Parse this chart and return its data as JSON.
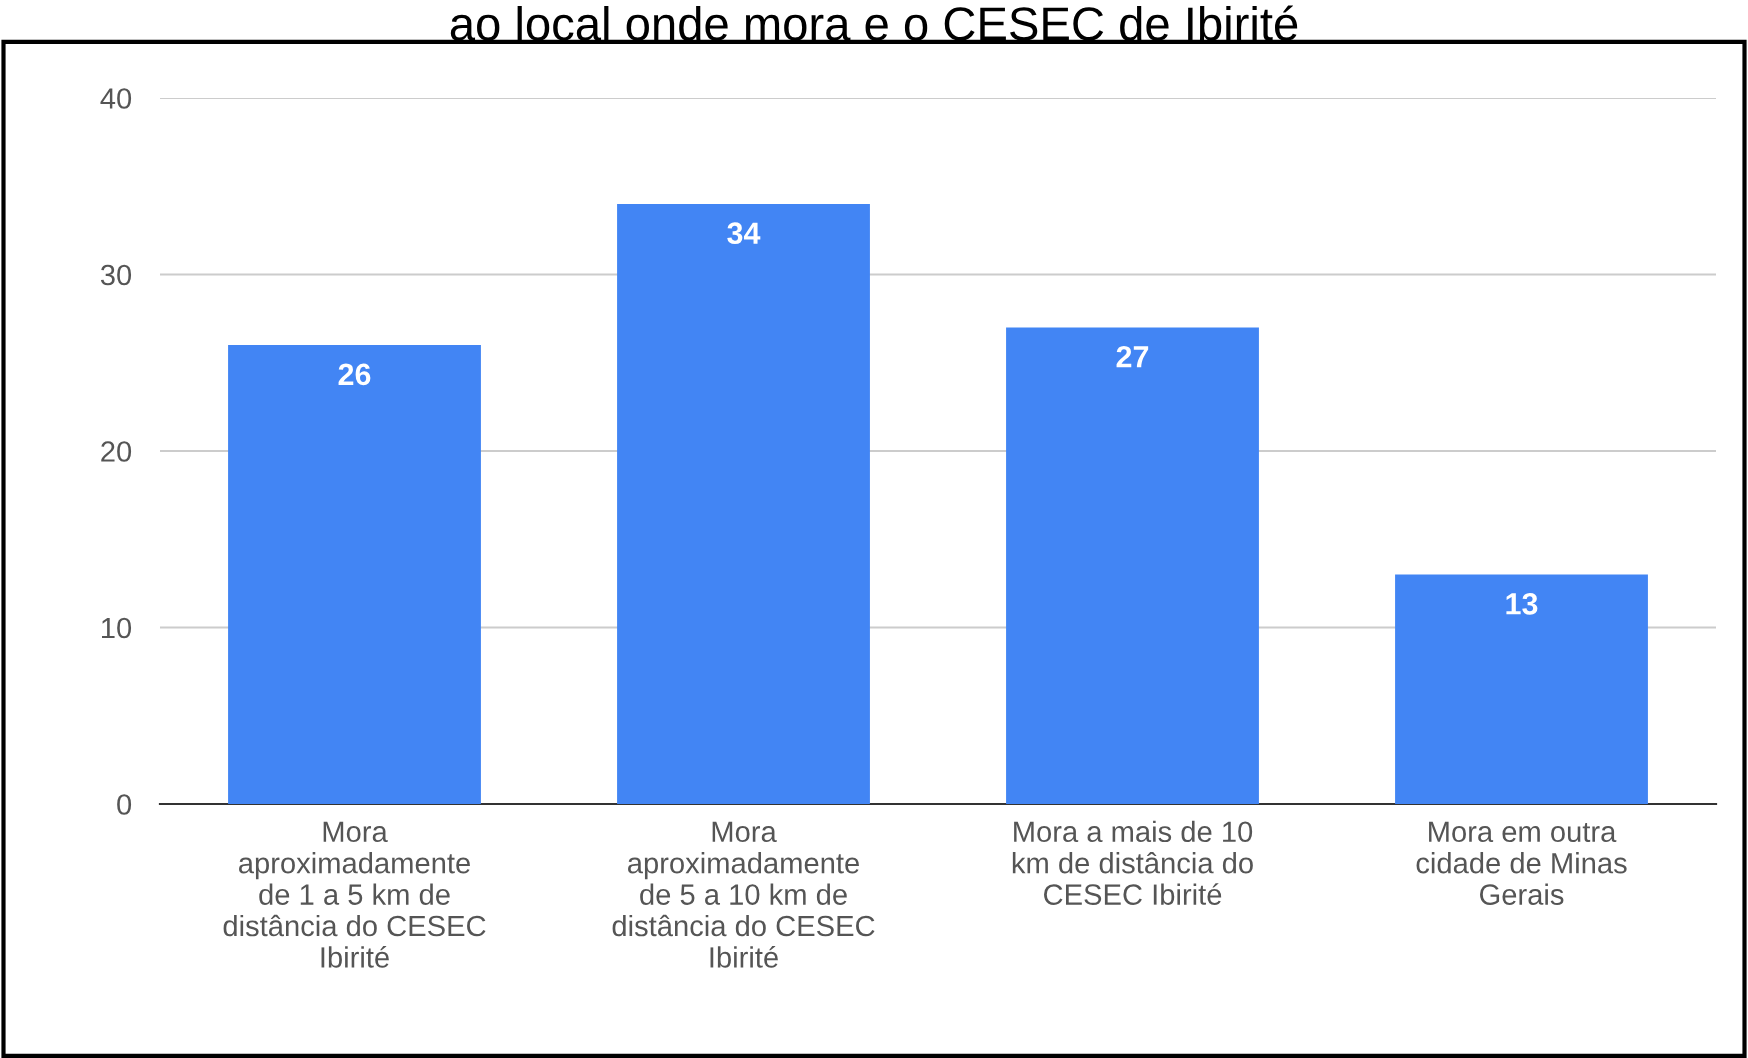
{
  "chart_data": {
    "type": "bar",
    "title": "ao local onde mora e o CESEC de Ibirité",
    "categories": [
      "Mora\naproximadamente\nde 1 a 5 km de\ndistância do CESEC\nIbirité",
      "Mora\naproximadamente\nde 5 a 10 km de\ndistância do CESEC\nIbirité",
      "Mora a mais de 10\nkm de distância do\nCESEC Ibirité",
      "Mora em outra\ncidade de Minas\nGerais"
    ],
    "values": [
      26,
      34,
      27,
      13
    ],
    "color": "#4285f4",
    "ylim": [
      0,
      40
    ],
    "yticks": [
      0,
      10,
      20,
      30,
      40
    ],
    "grid": "y",
    "data_labels": true
  }
}
